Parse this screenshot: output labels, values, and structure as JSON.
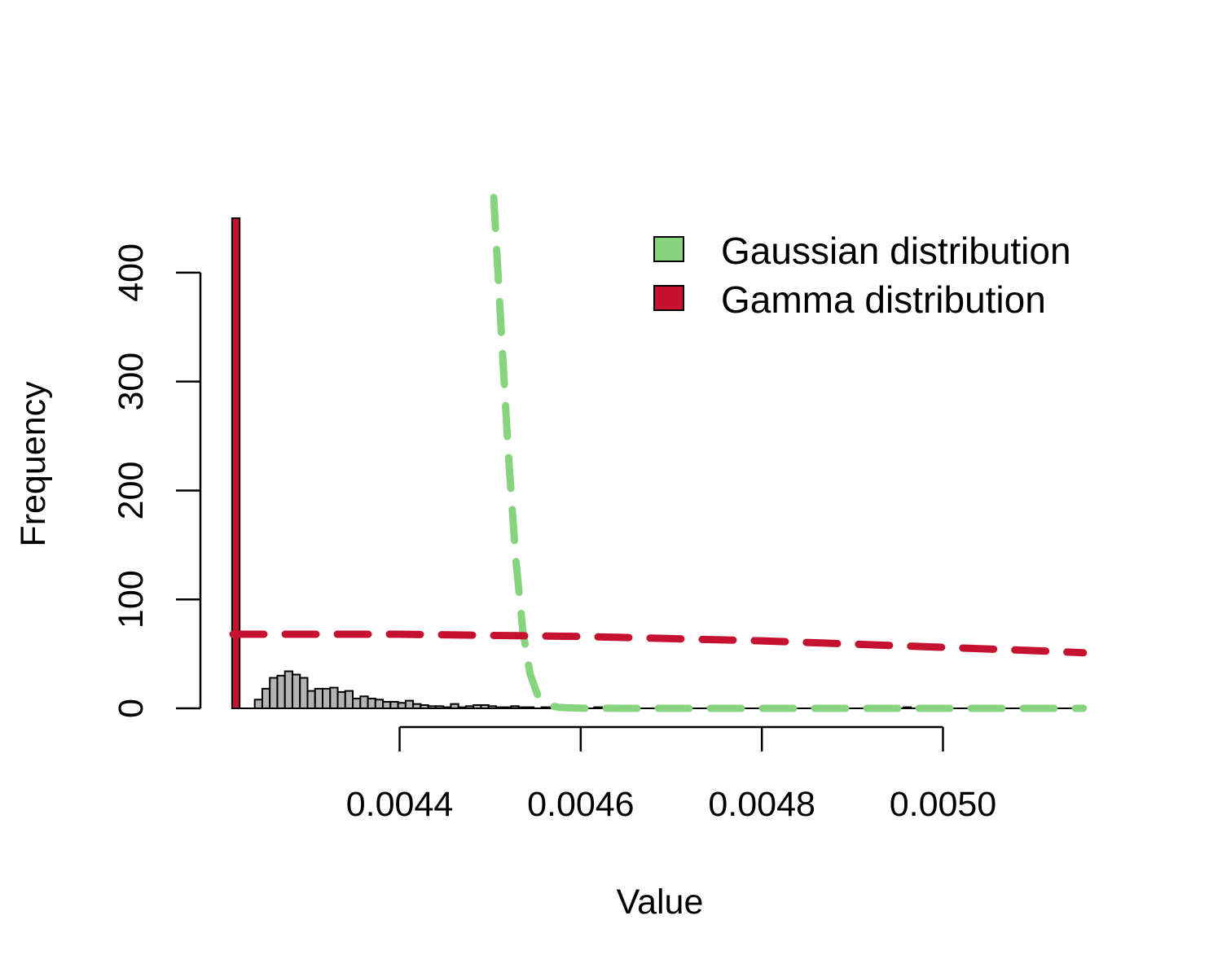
{
  "chart_data": {
    "type": "bar",
    "xlabel": "Value",
    "ylabel": "Frequency",
    "xticks": [
      {
        "value": 0.0044,
        "label": "0.0044"
      },
      {
        "value": 0.0046,
        "label": "0.0046"
      },
      {
        "value": 0.0048,
        "label": "0.0048"
      },
      {
        "value": 0.005,
        "label": "0.0050"
      }
    ],
    "yticks": [
      {
        "value": 0,
        "label": "0"
      },
      {
        "value": 100,
        "label": "100"
      },
      {
        "value": 200,
        "label": "200"
      },
      {
        "value": 300,
        "label": "300"
      },
      {
        "value": 400,
        "label": "400"
      }
    ],
    "xlim": [
      0.004216,
      0.005157
    ],
    "ylim": [
      0,
      450
    ],
    "histogram": {
      "bin_width": 8.33e-06,
      "x_start": 0.004215,
      "counts": [
        450,
        0,
        0,
        8,
        18,
        28,
        30,
        34,
        31,
        28,
        16,
        18,
        18,
        19,
        15,
        16,
        9,
        11,
        9,
        8,
        6,
        6,
        5,
        7,
        4,
        3,
        2,
        2,
        1,
        4,
        1,
        2,
        3,
        3,
        2,
        1,
        1,
        2,
        1,
        1,
        0,
        1,
        1,
        2,
        0,
        0,
        1,
        0,
        1,
        1,
        0,
        0,
        0,
        1,
        0,
        0,
        0,
        0,
        0,
        0,
        0,
        0,
        0,
        0,
        0,
        0,
        0,
        0,
        0,
        0,
        0,
        0,
        0,
        0,
        0,
        0,
        0,
        0,
        0,
        0,
        0,
        0,
        0,
        0,
        0,
        0,
        0,
        0,
        0,
        1,
        0,
        0,
        0,
        0,
        0,
        0,
        0,
        0,
        0,
        0,
        0,
        0,
        0,
        0,
        0,
        0,
        0,
        0,
        0,
        0,
        0,
        0,
        0
      ],
      "highlight_bar_color": "#C41230",
      "bar_color": "#B3B3B3"
    },
    "series": [
      {
        "name": "Gaussian distribution",
        "color": "#88D47E",
        "style": "dashed",
        "points": [
          [
            0.004504,
            469
          ],
          [
            0.004512,
            350
          ],
          [
            0.00452,
            235
          ],
          [
            0.004528,
            140
          ],
          [
            0.004536,
            72
          ],
          [
            0.004544,
            32
          ],
          [
            0.004552,
            13
          ],
          [
            0.00456,
            5
          ],
          [
            0.004568,
            2
          ],
          [
            0.004576,
            1
          ],
          [
            0.004584,
            0.5
          ],
          [
            0.0046,
            0.1
          ],
          [
            0.0047,
            0
          ],
          [
            0.0048,
            0
          ],
          [
            0.0049,
            0
          ],
          [
            0.005,
            0
          ],
          [
            0.005155,
            0
          ]
        ]
      },
      {
        "name": "Gamma distribution",
        "color": "#C41230",
        "style": "dashed",
        "points": [
          [
            0.004216,
            68
          ],
          [
            0.0043,
            68
          ],
          [
            0.0044,
            68
          ],
          [
            0.0045,
            67
          ],
          [
            0.0046,
            66
          ],
          [
            0.0047,
            64
          ],
          [
            0.0048,
            62
          ],
          [
            0.0049,
            59
          ],
          [
            0.005,
            56
          ],
          [
            0.0051,
            53
          ],
          [
            0.005155,
            51
          ]
        ]
      }
    ],
    "legend": {
      "position": "top-right",
      "entries": [
        {
          "label": "Gaussian distribution",
          "color": "#88D47E"
        },
        {
          "label": "Gamma distribution",
          "color": "#C41230"
        }
      ]
    },
    "grid": false
  }
}
